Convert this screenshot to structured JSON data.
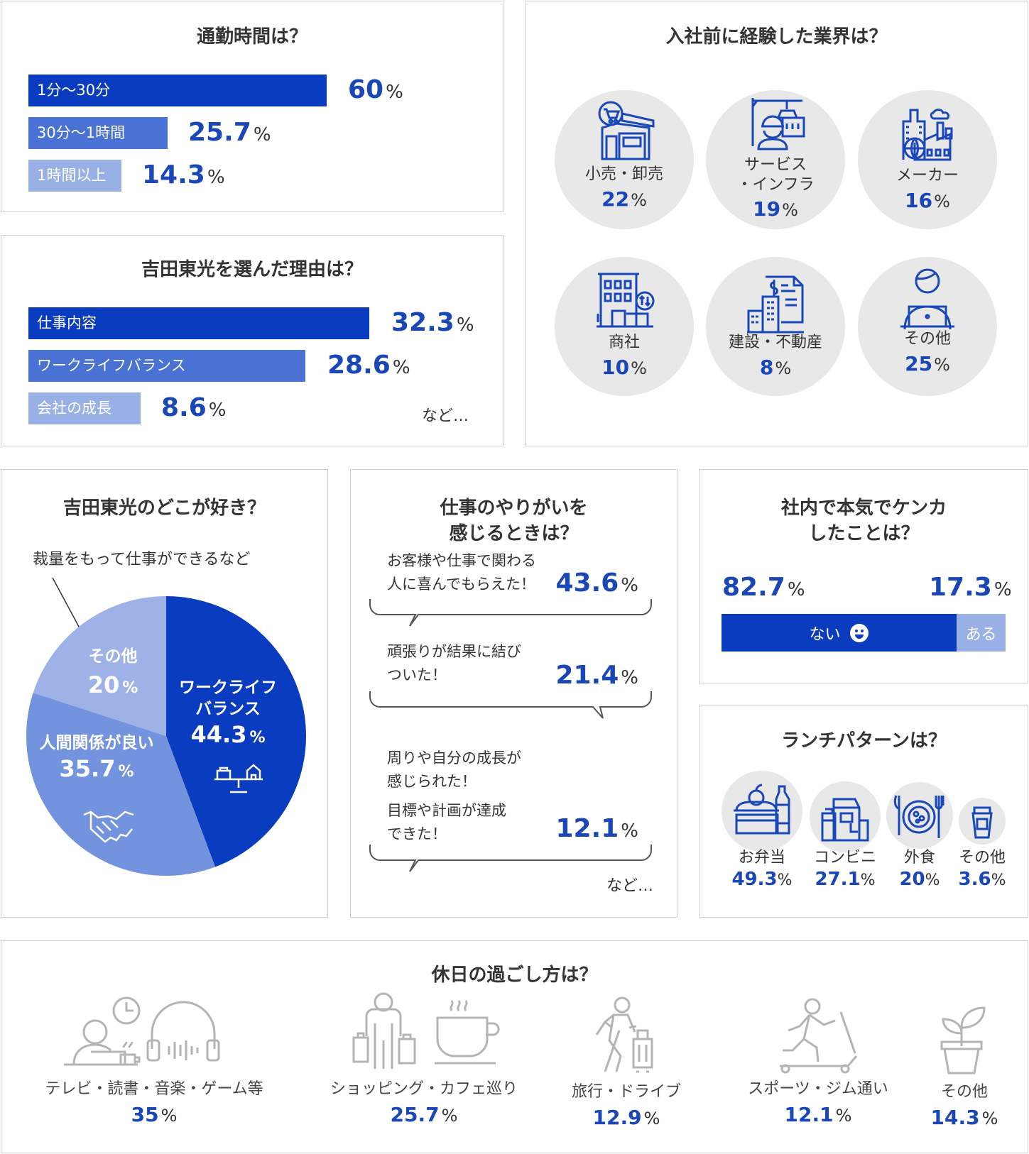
{
  "commute": {
    "title": "通勤時間は？",
    "rows": [
      {
        "label": "1分〜30分",
        "value": "60",
        "unit": "%"
      },
      {
        "label": "30分〜1時間",
        "value": "25.7",
        "unit": "%"
      },
      {
        "label": "1時間以上",
        "value": "14.3",
        "unit": "%"
      }
    ]
  },
  "reason": {
    "title": "吉田東光を選んだ理由は？",
    "rows": [
      {
        "label": "仕事内容",
        "value": "32.3",
        "unit": "%"
      },
      {
        "label": "ワークライフバランス",
        "value": "28.6",
        "unit": "%"
      },
      {
        "label": "会社の成長",
        "value": "8.6",
        "unit": "%"
      }
    ],
    "etc": "など…"
  },
  "industry": {
    "title": "入社前に経験した業界は？",
    "items": [
      {
        "name": "小売・卸売",
        "value": "22",
        "unit": "%",
        "icon": "store-icon"
      },
      {
        "name1": "サービス",
        "name2": "・インフラ",
        "value": "19",
        "unit": "%",
        "icon": "construction-worker-icon"
      },
      {
        "name": "メーカー",
        "value": "16",
        "unit": "%",
        "icon": "factory-icon"
      },
      {
        "name": "商社",
        "value": "10",
        "unit": "%",
        "icon": "office-building-icon"
      },
      {
        "name": "建設・不動産",
        "value": "8",
        "unit": "%",
        "icon": "real-estate-icon"
      },
      {
        "name": "その他",
        "value": "25",
        "unit": "%",
        "icon": "laptop-person-icon"
      }
    ]
  },
  "like": {
    "title": "吉田東光のどこが好き？",
    "note": "裁量をもって仕事ができるなど",
    "slices": [
      {
        "label1": "ワークライフ",
        "label2": "バランス",
        "value": "44.3",
        "unit": "%"
      },
      {
        "label1": "人間関係が良い",
        "value": "35.7",
        "unit": "%"
      },
      {
        "label1": "その他",
        "value": "20",
        "unit": "%"
      }
    ]
  },
  "worth": {
    "title1": "仕事のやりがいを",
    "title2": "感じるときは？",
    "items": [
      {
        "l1": "お客様や仕事で関わる",
        "l2": "人に喜んでもらえた！",
        "value": "43.6",
        "unit": "%"
      },
      {
        "l1": "頑張りが結果に結び",
        "l2": "ついた！",
        "value": "21.4",
        "unit": "%"
      },
      {
        "l1": "周りや自分の成長が",
        "l2": "感じられた！",
        "l3": "目標や計画が達成",
        "l4": "できた！",
        "value": "12.1",
        "unit": "%"
      }
    ],
    "etc": "など…"
  },
  "fight": {
    "title1": "社内で本気でケンカ",
    "title2": "したことは？",
    "no": {
      "label": "ない",
      "value": "82.7",
      "unit": "%"
    },
    "yes": {
      "label": "ある",
      "value": "17.3",
      "unit": "%"
    }
  },
  "lunch": {
    "title": "ランチパターンは？",
    "items": [
      {
        "name": "お弁当",
        "value": "49.3",
        "unit": "%",
        "icon": "bento-icon"
      },
      {
        "name": "コンビニ",
        "value": "27.1",
        "unit": "%",
        "icon": "convenience-store-icon"
      },
      {
        "name": "外食",
        "value": "20",
        "unit": "%",
        "icon": "plate-icon"
      },
      {
        "name": "その他",
        "value": "3.6",
        "unit": "%",
        "icon": "coffee-cup-icon"
      }
    ]
  },
  "holiday": {
    "title": "休日の過ごし方は？",
    "items": [
      {
        "name": "テレビ・読書・音楽・ゲーム等",
        "value": "35",
        "unit": "%",
        "icon": "relax-headphones-icon"
      },
      {
        "name": "ショッピング・カフェ巡り",
        "value": "25.7",
        "unit": "%",
        "icon": "shopping-cafe-icon"
      },
      {
        "name": "旅行・ドライブ",
        "value": "12.9",
        "unit": "%",
        "icon": "traveler-icon"
      },
      {
        "name": "スポーツ・ジム通い",
        "value": "12.1",
        "unit": "%",
        "icon": "treadmill-icon"
      },
      {
        "name": "その他",
        "value": "14.3",
        "unit": "%",
        "icon": "plant-pot-icon"
      }
    ]
  },
  "colors": {
    "dark": "#0a3cbf",
    "mid": "#4a72d4",
    "light": "#99b0e6",
    "gray": "#e8e8e8"
  }
}
